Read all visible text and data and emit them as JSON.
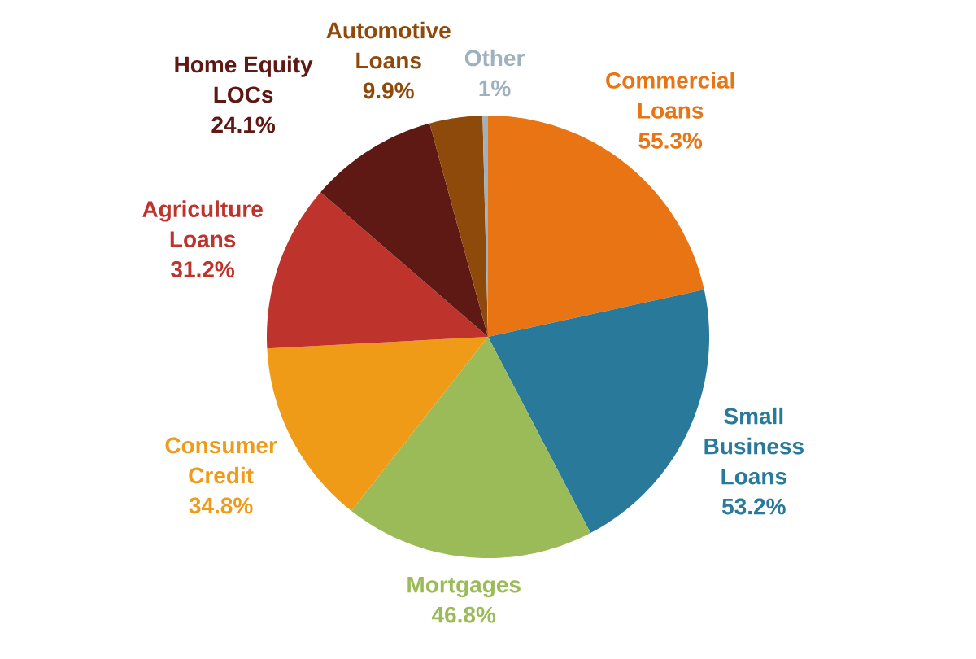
{
  "chart_data": {
    "type": "pie",
    "categories": [
      "Commercial Loans",
      "Small Business Loans",
      "Mortgages",
      "Consumer Credit",
      "Agriculture Loans",
      "Home Equity LOCs",
      "Automotive Loans",
      "Other"
    ],
    "values": [
      55.3,
      53.2,
      46.8,
      34.8,
      31.2,
      24.1,
      9.9,
      1
    ],
    "value_labels": [
      "55.3%",
      "53.2%",
      "46.8%",
      "34.8%",
      "31.2%",
      "24.1%",
      "9.9%",
      "1%"
    ],
    "colors": [
      "#e87414",
      "#28799a",
      "#9bbb59",
      "#f09b18",
      "#be342c",
      "#5e1914",
      "#8e4a0b",
      "#9fb1bd"
    ]
  }
}
